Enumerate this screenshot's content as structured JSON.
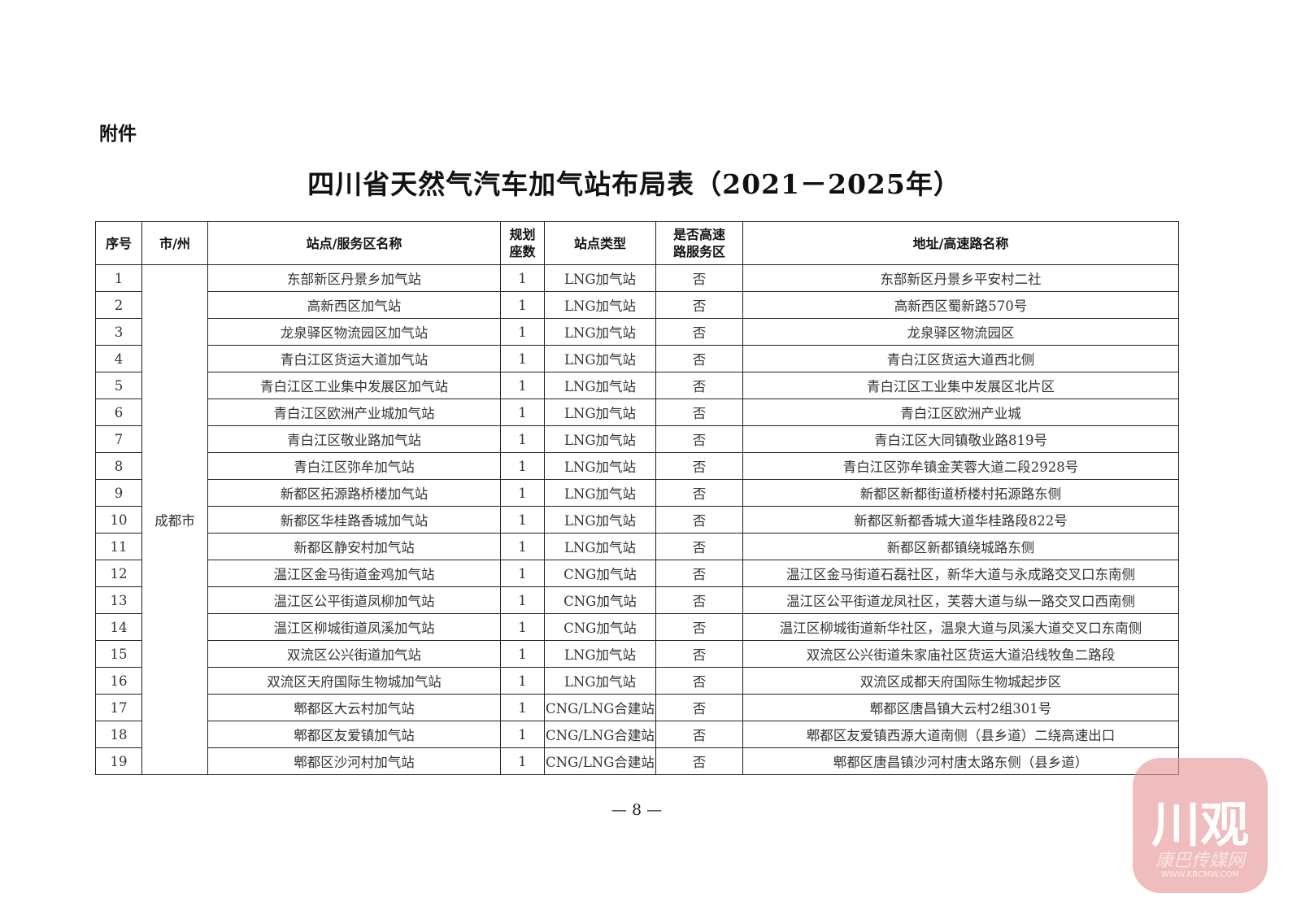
{
  "attachment_label": "附件",
  "title": "四川省天然气汽车加气站布局表（2021－2025年）",
  "table": {
    "headers": [
      "序号",
      "市/州",
      "站点/服务区名称",
      "规划座数",
      "站点类型",
      "是否高速路服务区",
      "地址/高速路名称"
    ],
    "header_lines": {
      "plan_count": [
        "规划",
        "座数"
      ],
      "highway": [
        "是否高速",
        "路服务区"
      ]
    },
    "city": "成都市",
    "rows": [
      {
        "no": "1",
        "name": "东部新区丹景乡加气站",
        "count": "1",
        "type": "LNG加气站",
        "highway": "否",
        "address": "东部新区丹景乡平安村二社"
      },
      {
        "no": "2",
        "name": "高新西区加气站",
        "count": "1",
        "type": "LNG加气站",
        "highway": "否",
        "address": "高新西区蜀新路570号"
      },
      {
        "no": "3",
        "name": "龙泉驿区物流园区加气站",
        "count": "1",
        "type": "LNG加气站",
        "highway": "否",
        "address": "龙泉驿区物流园区"
      },
      {
        "no": "4",
        "name": "青白江区货运大道加气站",
        "count": "1",
        "type": "LNG加气站",
        "highway": "否",
        "address": "青白江区货运大道西北侧"
      },
      {
        "no": "5",
        "name": "青白江区工业集中发展区加气站",
        "count": "1",
        "type": "LNG加气站",
        "highway": "否",
        "address": "青白江区工业集中发展区北片区"
      },
      {
        "no": "6",
        "name": "青白江区欧洲产业城加气站",
        "count": "1",
        "type": "LNG加气站",
        "highway": "否",
        "address": "青白江区欧洲产业城"
      },
      {
        "no": "7",
        "name": "青白江区敬业路加气站",
        "count": "1",
        "type": "LNG加气站",
        "highway": "否",
        "address": "青白江区大同镇敬业路819号"
      },
      {
        "no": "8",
        "name": "青白江区弥牟加气站",
        "count": "1",
        "type": "LNG加气站",
        "highway": "否",
        "address": "青白江区弥牟镇金芙蓉大道二段2928号"
      },
      {
        "no": "9",
        "name": "新都区拓源路桥楼加气站",
        "count": "1",
        "type": "LNG加气站",
        "highway": "否",
        "address": "新都区新都街道桥楼村拓源路东侧"
      },
      {
        "no": "10",
        "name": "新都区华桂路香城加气站",
        "count": "1",
        "type": "LNG加气站",
        "highway": "否",
        "address": "新都区新都香城大道华桂路段822号"
      },
      {
        "no": "11",
        "name": "新都区静安村加气站",
        "count": "1",
        "type": "LNG加气站",
        "highway": "否",
        "address": "新都区新都镇绕城路东侧"
      },
      {
        "no": "12",
        "name": "温江区金马街道金鸡加气站",
        "count": "1",
        "type": "CNG加气站",
        "highway": "否",
        "address": "温江区金马街道石磊社区，新华大道与永成路交叉口东南侧"
      },
      {
        "no": "13",
        "name": "温江区公平街道凤柳加气站",
        "count": "1",
        "type": "CNG加气站",
        "highway": "否",
        "address": "温江区公平街道龙凤社区，芙蓉大道与纵一路交叉口西南侧"
      },
      {
        "no": "14",
        "name": "温江区柳城街道凤溪加气站",
        "count": "1",
        "type": "CNG加气站",
        "highway": "否",
        "address": "温江区柳城街道新华社区，温泉大道与凤溪大道交叉口东南侧"
      },
      {
        "no": "15",
        "name": "双流区公兴街道加气站",
        "count": "1",
        "type": "LNG加气站",
        "highway": "否",
        "address": "双流区公兴街道朱家庙社区货运大道沿线牧鱼二路段"
      },
      {
        "no": "16",
        "name": "双流区天府国际生物城加气站",
        "count": "1",
        "type": "LNG加气站",
        "highway": "否",
        "address": "双流区成都天府国际生物城起步区"
      },
      {
        "no": "17",
        "name": "郫都区大云村加气站",
        "count": "1",
        "type": "CNG/LNG合建站",
        "highway": "否",
        "address": "郫都区唐昌镇大云村2组301号"
      },
      {
        "no": "18",
        "name": "郫都区友爱镇加气站",
        "count": "1",
        "type": "CNG/LNG合建站",
        "highway": "否",
        "address": "郫都区友爱镇西源大道南侧（县乡道）二绕高速出口"
      },
      {
        "no": "19",
        "name": "郫都区沙河村加气站",
        "count": "1",
        "type": "CNG/LNG合建站",
        "highway": "否",
        "address": "郫都区唐昌镇沙河村唐太路东侧（县乡道）"
      }
    ]
  },
  "page_number": "— 8 —",
  "watermark": {
    "logo_text": "川观",
    "sub_text": "康巴传媒网",
    "url": "WWW.KBCMW.COM",
    "color": "#e89a9a"
  }
}
